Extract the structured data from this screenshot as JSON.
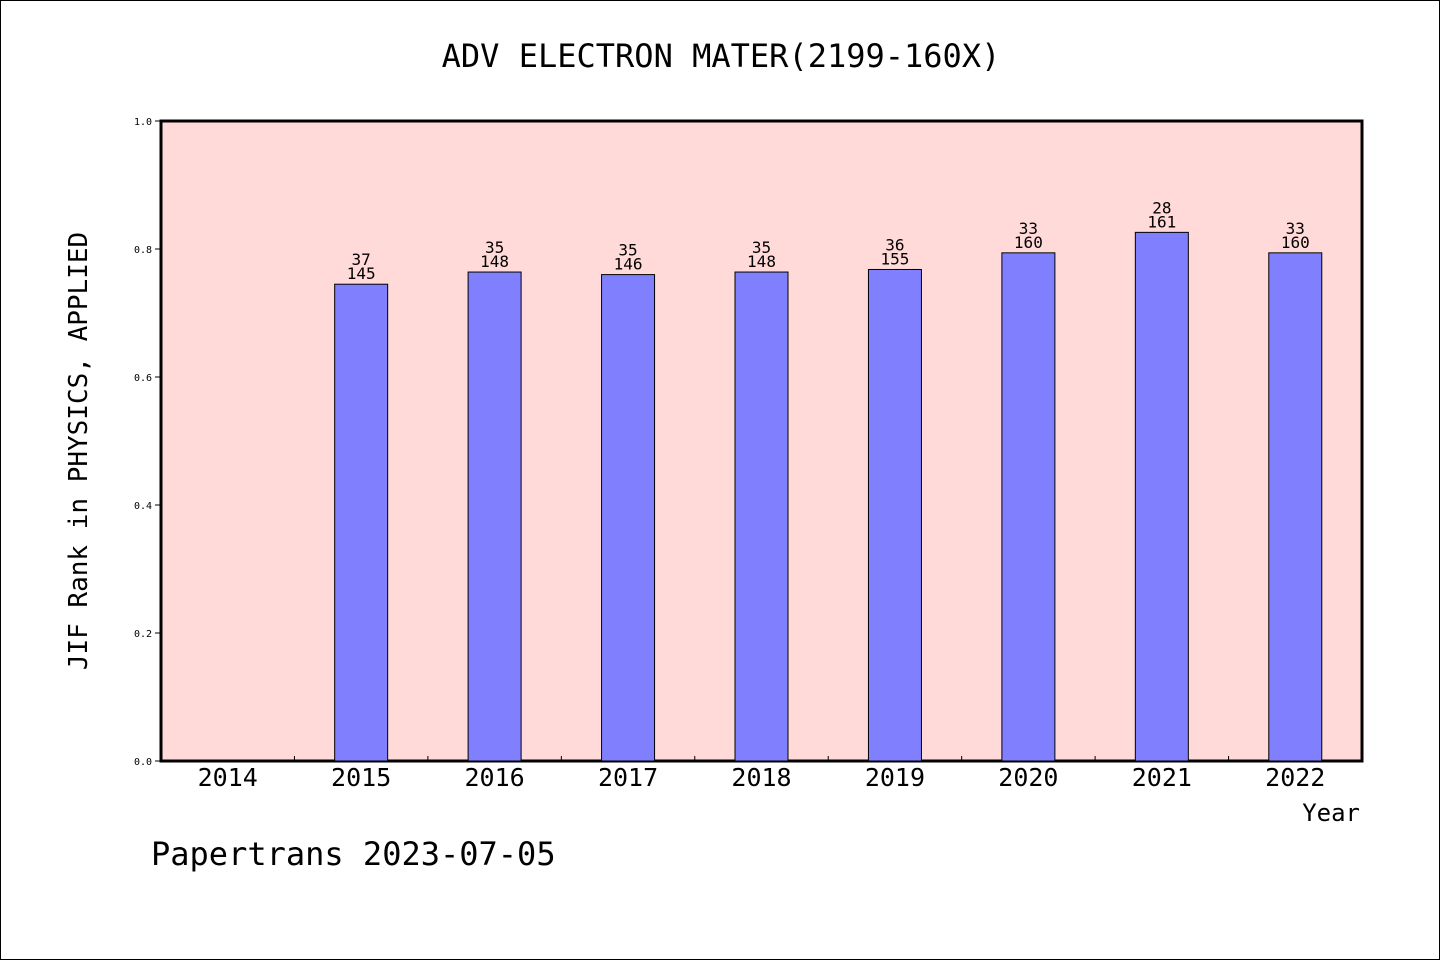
{
  "chart_data": {
    "type": "bar",
    "title": "ADV ELECTRON MATER(2199-160X)",
    "xlabel": "Year",
    "ylabel": "JIF Rank in PHYSICS, APPLIED",
    "categories": [
      "2014",
      "2015",
      "2016",
      "2017",
      "2018",
      "2019",
      "2020",
      "2021",
      "2022"
    ],
    "values": [
      null,
      0.745,
      0.764,
      0.76,
      0.764,
      0.768,
      0.794,
      0.826,
      0.794
    ],
    "labels_rank": [
      "",
      "37",
      "35",
      "35",
      "35",
      "36",
      "33",
      "28",
      "33"
    ],
    "labels_total": [
      "",
      "145",
      "148",
      "146",
      "148",
      "155",
      "160",
      "161",
      "160"
    ],
    "ylim": [
      0,
      1.0
    ],
    "yticks": [
      "0.0",
      "0.2",
      "0.4",
      "0.6",
      "0.8",
      "1.0"
    ],
    "grid": false,
    "colors": {
      "plot_bg": "#ffdad8",
      "bar": "#8080ff"
    }
  },
  "footer": {
    "text": "Papertrans 2023-07-05"
  }
}
